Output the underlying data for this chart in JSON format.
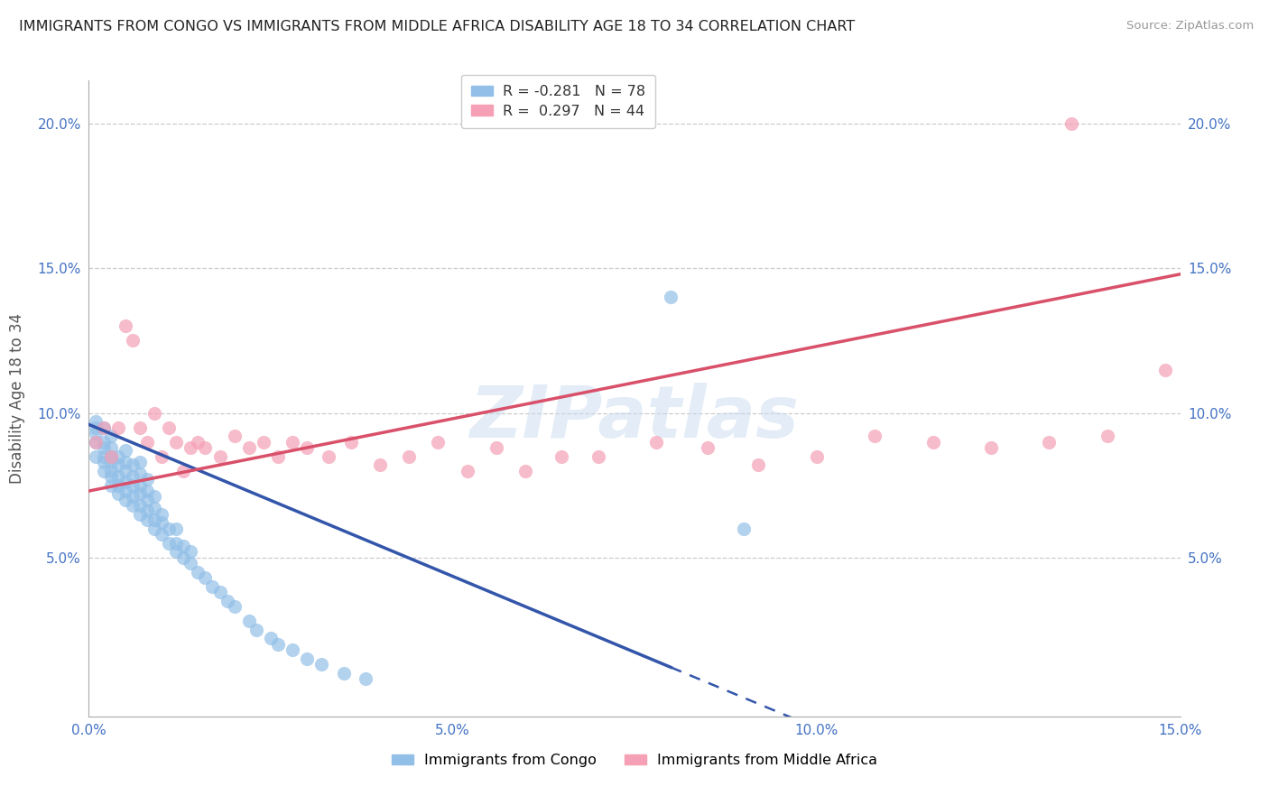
{
  "title": "IMMIGRANTS FROM CONGO VS IMMIGRANTS FROM MIDDLE AFRICA DISABILITY AGE 18 TO 34 CORRELATION CHART",
  "source": "Source: ZipAtlas.com",
  "ylabel": "Disability Age 18 to 34",
  "xlim": [
    0.0,
    0.15
  ],
  "ylim": [
    -0.005,
    0.215
  ],
  "xtick_labels": [
    "0.0%",
    "5.0%",
    "10.0%",
    "15.0%"
  ],
  "xtick_vals": [
    0.0,
    0.05,
    0.1,
    0.15
  ],
  "ytick_labels": [
    "5.0%",
    "10.0%",
    "15.0%",
    "20.0%"
  ],
  "ytick_vals": [
    0.05,
    0.1,
    0.15,
    0.2
  ],
  "congo_color": "#92bfe8",
  "middle_africa_color": "#f5a0b5",
  "congo_line_color": "#3355aa",
  "middle_line_color": "#d9506a",
  "congo_R": -0.281,
  "congo_N": 78,
  "middle_africa_R": 0.297,
  "middle_africa_N": 44,
  "watermark": "ZIPatlas",
  "legend_congo": "Immigrants from Congo",
  "legend_middle": "Immigrants from Middle Africa",
  "congo_scatter_x": [
    0.001,
    0.001,
    0.001,
    0.001,
    0.001,
    0.002,
    0.002,
    0.002,
    0.002,
    0.002,
    0.002,
    0.003,
    0.003,
    0.003,
    0.003,
    0.003,
    0.003,
    0.003,
    0.004,
    0.004,
    0.004,
    0.004,
    0.004,
    0.005,
    0.005,
    0.005,
    0.005,
    0.005,
    0.005,
    0.006,
    0.006,
    0.006,
    0.006,
    0.006,
    0.007,
    0.007,
    0.007,
    0.007,
    0.007,
    0.007,
    0.008,
    0.008,
    0.008,
    0.008,
    0.008,
    0.009,
    0.009,
    0.009,
    0.009,
    0.01,
    0.01,
    0.01,
    0.011,
    0.011,
    0.012,
    0.012,
    0.012,
    0.013,
    0.013,
    0.014,
    0.014,
    0.015,
    0.016,
    0.017,
    0.018,
    0.019,
    0.02,
    0.022,
    0.023,
    0.025,
    0.026,
    0.028,
    0.03,
    0.032,
    0.035,
    0.038,
    0.08,
    0.09
  ],
  "congo_scatter_y": [
    0.085,
    0.09,
    0.093,
    0.095,
    0.097,
    0.08,
    0.083,
    0.085,
    0.088,
    0.09,
    0.095,
    0.075,
    0.078,
    0.08,
    0.083,
    0.085,
    0.088,
    0.092,
    0.072,
    0.075,
    0.078,
    0.082,
    0.085,
    0.07,
    0.073,
    0.076,
    0.08,
    0.083,
    0.087,
    0.068,
    0.071,
    0.075,
    0.078,
    0.082,
    0.065,
    0.068,
    0.072,
    0.075,
    0.079,
    0.083,
    0.063,
    0.066,
    0.07,
    0.073,
    0.077,
    0.06,
    0.063,
    0.067,
    0.071,
    0.058,
    0.062,
    0.065,
    0.055,
    0.06,
    0.052,
    0.055,
    0.06,
    0.05,
    0.054,
    0.048,
    0.052,
    0.045,
    0.043,
    0.04,
    0.038,
    0.035,
    0.033,
    0.028,
    0.025,
    0.022,
    0.02,
    0.018,
    0.015,
    0.013,
    0.01,
    0.008,
    0.14,
    0.06
  ],
  "middle_scatter_x": [
    0.001,
    0.002,
    0.003,
    0.004,
    0.005,
    0.006,
    0.007,
    0.008,
    0.009,
    0.01,
    0.011,
    0.012,
    0.013,
    0.014,
    0.015,
    0.016,
    0.018,
    0.02,
    0.022,
    0.024,
    0.026,
    0.028,
    0.03,
    0.033,
    0.036,
    0.04,
    0.044,
    0.048,
    0.052,
    0.056,
    0.06,
    0.065,
    0.07,
    0.078,
    0.085,
    0.092,
    0.1,
    0.108,
    0.116,
    0.124,
    0.132,
    0.14,
    0.148,
    0.135
  ],
  "middle_scatter_y": [
    0.09,
    0.095,
    0.085,
    0.095,
    0.13,
    0.125,
    0.095,
    0.09,
    0.1,
    0.085,
    0.095,
    0.09,
    0.08,
    0.088,
    0.09,
    0.088,
    0.085,
    0.092,
    0.088,
    0.09,
    0.085,
    0.09,
    0.088,
    0.085,
    0.09,
    0.082,
    0.085,
    0.09,
    0.08,
    0.088,
    0.08,
    0.085,
    0.085,
    0.09,
    0.088,
    0.082,
    0.085,
    0.092,
    0.09,
    0.088,
    0.09,
    0.092,
    0.115,
    0.2
  ],
  "congo_line_solid_xend": 0.08,
  "blue_line_intercept": 0.096,
  "blue_line_slope": -1.05,
  "pink_line_intercept": 0.073,
  "pink_line_slope": 0.5
}
